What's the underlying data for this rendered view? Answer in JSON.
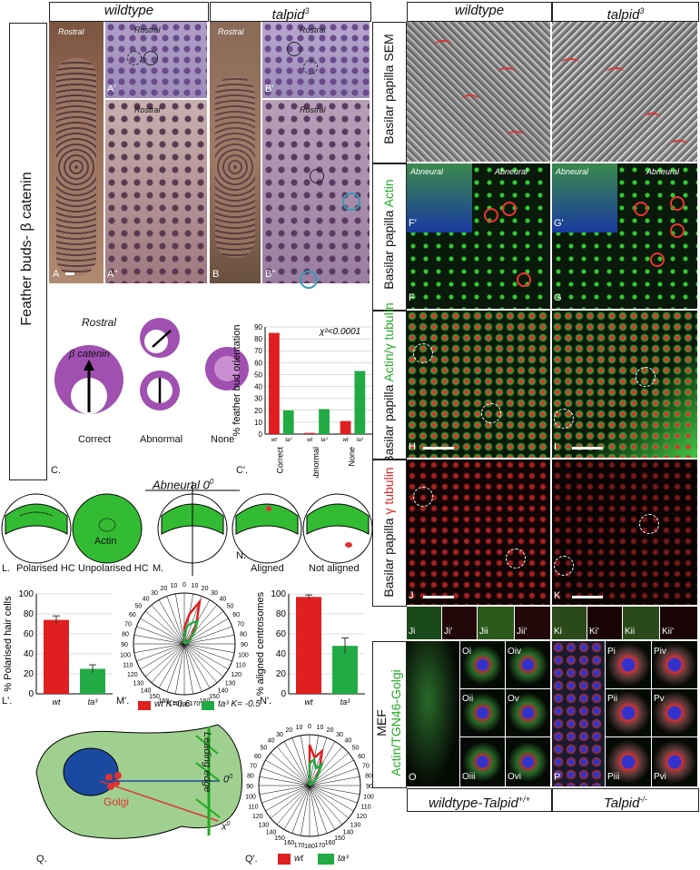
{
  "headers": {
    "wildtype_left": "wildtype",
    "talpid_left": "talpid",
    "talpid_sup": "3",
    "wildtype_right": "wildtype",
    "talpid_right": "talpid",
    "bottom_left": "wildtype-Talpid",
    "bottom_left_sup": "+/+",
    "bottom_right": "Talpid",
    "bottom_right_sup": "-/-"
  },
  "side_labels": {
    "feather": "Feather buds- β catenin",
    "sem": "Basilar papilla SEM",
    "actin": "Basilar papilla",
    "actin_color": "Actin",
    "actin_tub": "Basilar papilla",
    "actin_tub_color": "Actin/γ tubulin",
    "tub": "Basilar papilla",
    "tub_color": "γ tubulin",
    "mef": "MEF",
    "mef_color": "Actin/TGN46-Golgi"
  },
  "panel_letters": {
    "A": "A",
    "A1": "A'",
    "A2": "A''",
    "B": "B",
    "B1": "B'",
    "B2": "B''",
    "C": "C.",
    "C1": "C'.",
    "F": "F",
    "F1": "F'",
    "G": "G",
    "G1": "G'",
    "H": "H",
    "I": "I",
    "J": "J",
    "K": "K",
    "L": "L.",
    "L1": "L'.",
    "M": "M.",
    "M1": "M'.",
    "N": "N.",
    "N1": "N'.",
    "Q": "Q.",
    "Q1": "Q'.",
    "O": "O",
    "P": "P"
  },
  "tiny": {
    "rostral": "Rostral",
    "abneural": "Abneural"
  },
  "sub_letters_j": [
    "Ji",
    "Ji'",
    "Jii",
    "Jii'"
  ],
  "sub_letters_k": [
    "Ki",
    "Ki'",
    "Kii",
    "Kii'"
  ],
  "sub_letters_o": [
    "Oi",
    "Oii",
    "Oiii",
    "Oiv",
    "Ov",
    "Ovi"
  ],
  "sub_letters_p": [
    "Pi",
    "Pii",
    "Piii",
    "Piv",
    "Pv",
    "Pvi"
  ],
  "schematic_c": {
    "rostral": "Rostral",
    "beta": "β catenin",
    "correct": "Correct",
    "abnormal": "Abnormal",
    "none": "None"
  },
  "schematic_l": {
    "polarised": "Polarised HC",
    "unpolarised": "Unpolarised HC",
    "actin": "Actin",
    "abneural": "Abneural",
    "zero": "0",
    "aligned": "Aligned",
    "not_aligned": "Not aligned"
  },
  "schematic_q": {
    "golgi": "Golgi",
    "leading": "Leading edge",
    "zero": "0",
    "x": "x"
  },
  "colors": {
    "wt": "#e02020",
    "ta": "#22aa44",
    "purple": "#a050b0",
    "green": "#33bb33"
  },
  "chart_data": [
    {
      "type": "bar",
      "ylabel": "% feather bud orientation",
      "annotation": "χ²<0.0001",
      "ylim": [
        0,
        90
      ],
      "yticks": [
        0,
        10,
        20,
        30,
        40,
        50,
        60,
        70,
        80,
        90
      ],
      "categories": [
        "Correct",
        "Abnormal",
        "None"
      ],
      "series": [
        {
          "name": "wt",
          "values": [
            85,
            1,
            11
          ]
        },
        {
          "name": "ta³",
          "values": [
            20,
            21,
            53
          ]
        }
      ]
    },
    {
      "type": "bar",
      "ylabel": "% Polarised hair cells",
      "ylim": [
        0,
        100
      ],
      "yticks": [
        0,
        20,
        40,
        60,
        80,
        100
      ],
      "categories": [
        "wt",
        "ta³"
      ],
      "values": [
        74,
        25
      ],
      "errors": [
        4,
        4
      ]
    },
    {
      "type": "bar",
      "ylabel": "% aligned centrosomes",
      "ylim": [
        0,
        100
      ],
      "yticks": [
        0,
        20,
        40,
        60,
        80,
        100
      ],
      "categories": [
        "wt",
        "ta³"
      ],
      "values": [
        97,
        48
      ],
      "errors": [
        2,
        8
      ]
    },
    {
      "type": "line",
      "subtype": "polar",
      "legend": [
        "wt K=0.6",
        "ta³ K= -0.5"
      ],
      "ticks": [
        "0",
        "10",
        "20",
        "30",
        "40",
        "50",
        "60",
        "70",
        "80",
        "90",
        "100",
        "110",
        "120",
        "130",
        "140",
        "150",
        "160",
        "170",
        "180"
      ],
      "series": [
        {
          "name": "wt K=0.6",
          "values": [
            8,
            15,
            22,
            12,
            6,
            3,
            2
          ]
        },
        {
          "name": "ta³ K= -0.5",
          "values": [
            5,
            9,
            11,
            13,
            8,
            4,
            3
          ]
        }
      ]
    },
    {
      "type": "line",
      "subtype": "polar",
      "legend": [
        "wt",
        "ta³"
      ],
      "ticks": [
        "0",
        "10",
        "20",
        "30",
        "40",
        "50",
        "60",
        "70",
        "80",
        "90",
        "100",
        "110",
        "120",
        "130",
        "140",
        "150",
        "160",
        "170",
        "180"
      ],
      "series": [
        {
          "name": "wt",
          "values": [
            20,
            14,
            18,
            10,
            5,
            3
          ]
        },
        {
          "name": "ta³",
          "values": [
            11,
            13,
            9,
            12,
            6,
            3
          ]
        }
      ]
    }
  ]
}
